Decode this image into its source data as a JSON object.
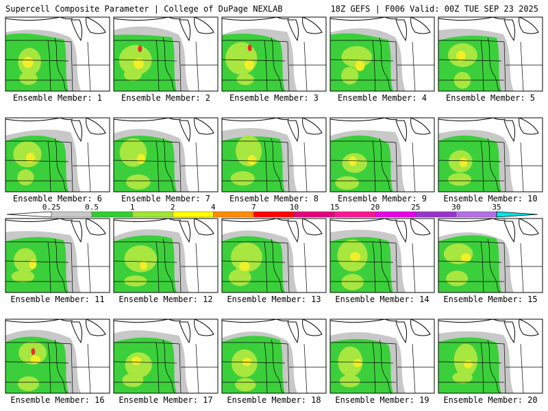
{
  "header": {
    "left": "Supercell Composite Parameter | College of DuPage NEXLAB",
    "right": "18Z GEFS | F006 Valid: 00Z TUE SEP 23 2025"
  },
  "members": [
    "Ensemble Member: 1",
    "Ensemble Member: 2",
    "Ensemble Member: 3",
    "Ensemble Member: 4",
    "Ensemble Member: 5",
    "Ensemble Member: 6",
    "Ensemble Member: 7",
    "Ensemble Member: 8",
    "Ensemble Member: 9",
    "Ensemble Member: 10",
    "Ensemble Member: 11",
    "Ensemble Member: 12",
    "Ensemble Member: 13",
    "Ensemble Member: 14",
    "Ensemble Member: 15",
    "Ensemble Member: 16",
    "Ensemble Member: 17",
    "Ensemble Member: 18",
    "Ensemble Member: 19",
    "Ensemble Member: 20"
  ],
  "legend": {
    "ticks": [
      "0.25",
      "0.5",
      "1",
      "2",
      "4",
      "7",
      "10",
      "15",
      "20",
      "25",
      "30",
      "35"
    ],
    "colors": [
      "#c8c8c8",
      "#32cd32",
      "#a0e632",
      "#ffff00",
      "#ff8c00",
      "#ff0000",
      "#e6007a",
      "#ff1493",
      "#e600e6",
      "#9932cc",
      "#b46ee6",
      "#00e6e6"
    ]
  },
  "map_colors": {
    "low": "#c8c8c8",
    "mid": "#3ccf3c",
    "high": "#a8e640",
    "higher": "#f0f028",
    "peak": "#e83030"
  }
}
